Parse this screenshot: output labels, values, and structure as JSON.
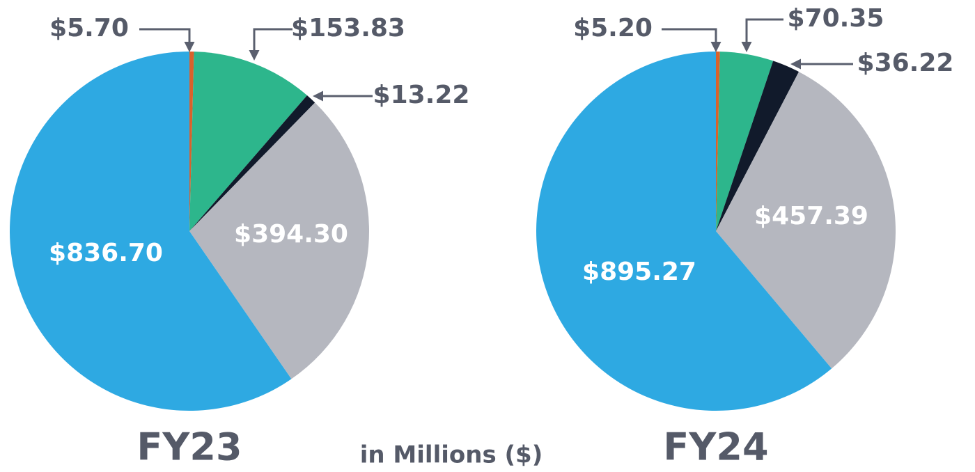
{
  "caption": "in Millions ($)",
  "chart_data": [
    {
      "type": "pie",
      "title": "FY23",
      "values": [
        5.7,
        153.83,
        13.22,
        394.3,
        836.7
      ],
      "value_labels": [
        "$5.70",
        "$153.83",
        "$13.22",
        "$394.30",
        "$836.70"
      ],
      "colors": [
        "#d9622b",
        "#2db68c",
        "#111a2b",
        "#b5b7bf",
        "#2ea9e2"
      ]
    },
    {
      "type": "pie",
      "title": "FY24",
      "values": [
        5.2,
        70.35,
        36.22,
        457.39,
        895.27
      ],
      "value_labels": [
        "$5.20",
        "$70.35",
        "$36.22",
        "$457.39",
        "$895.27"
      ],
      "colors": [
        "#d9622b",
        "#2db68c",
        "#111a2b",
        "#b5b7bf",
        "#2ea9e2"
      ]
    }
  ]
}
